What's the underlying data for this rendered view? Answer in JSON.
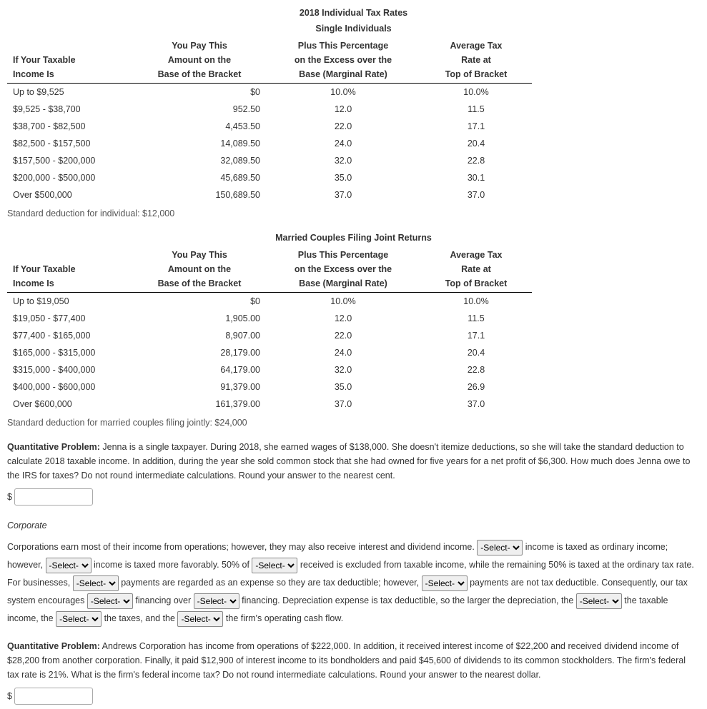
{
  "title_main": "2018 Individual Tax Rates",
  "subtitle_single": "Single Individuals",
  "headers": {
    "income": "If Your Taxable Income Is",
    "income1": "If Your Taxable",
    "income2": "Income Is",
    "base1": "You Pay This",
    "base2": "Amount on the",
    "base3": "Base of the Bracket",
    "rate1": "Plus This Percentage",
    "rate2": "on the Excess over the",
    "rate3": "Base (Marginal Rate)",
    "avg1": "Average Tax",
    "avg2": "Rate at",
    "avg3": "Top of Bracket"
  },
  "single_rows": [
    {
      "range": "Up to $9,525",
      "base": "$0",
      "rate": "10.0%",
      "avg": "10.0%"
    },
    {
      "range": "$9,525 - $38,700",
      "base": "952.50",
      "rate": "12.0",
      "avg": "11.5"
    },
    {
      "range": "$38,700 - $82,500",
      "base": "4,453.50",
      "rate": "22.0",
      "avg": "17.1"
    },
    {
      "range": "$82,500 - $157,500",
      "base": "14,089.50",
      "rate": "24.0",
      "avg": "20.4"
    },
    {
      "range": "$157,500 - $200,000",
      "base": "32,089.50",
      "rate": "32.0",
      "avg": "22.8"
    },
    {
      "range": "$200,000 - $500,000",
      "base": "45,689.50",
      "rate": "35.0",
      "avg": "30.1"
    },
    {
      "range": "Over $500,000",
      "base": "150,689.50",
      "rate": "37.0",
      "avg": "37.0"
    }
  ],
  "single_note": "Standard deduction for individual: $12,000",
  "subtitle_married": "Married Couples Filing Joint Returns",
  "married_rows": [
    {
      "range": "Up to $19,050",
      "base": "$0",
      "rate": "10.0%",
      "avg": "10.0%"
    },
    {
      "range": "$19,050 - $77,400",
      "base": "1,905.00",
      "rate": "12.0",
      "avg": "11.5"
    },
    {
      "range": "$77,400 - $165,000",
      "base": "8,907.00",
      "rate": "22.0",
      "avg": "17.1"
    },
    {
      "range": "$165,000 - $315,000",
      "base": "28,179.00",
      "rate": "24.0",
      "avg": "20.4"
    },
    {
      "range": "$315,000 - $400,000",
      "base": "64,179.00",
      "rate": "32.0",
      "avg": "22.8"
    },
    {
      "range": "$400,000 - $600,000",
      "base": "91,379.00",
      "rate": "35.0",
      "avg": "26.9"
    },
    {
      "range": "Over $600,000",
      "base": "161,379.00",
      "rate": "37.0",
      "avg": "37.0"
    }
  ],
  "married_note": "Standard deduction for married couples filing jointly: $24,000",
  "q1_label": "Quantitative Problem:",
  "q1_text": " Jenna is a single taxpayer. During 2018, she earned wages of $138,000. She doesn't itemize deductions, so she will take the standard deduction to calculate 2018 taxable income. In addition, during the year she sold common stock that she had owned for five years for a net profit of $6,300. How much does Jenna owe to the IRS for taxes? Do not round intermediate calculations. Round your answer to the nearest cent.",
  "dollar_sign": "$",
  "corporate_heading": "Corporate",
  "corp_t1": "Corporations earn most of their income from operations; however, they may also receive interest and dividend income. ",
  "corp_t2": " income is taxed as ordinary income; however, ",
  "corp_t3": " income is taxed more favorably. 50% of ",
  "corp_t4": " received is excluded from taxable income, while the remaining 50% is taxed at the ordinary tax rate. For businesses, ",
  "corp_t5": " payments are regarded as an expense so they are tax deductible; however, ",
  "corp_t6": " payments are not tax deductible. Consequently, our tax system encourages ",
  "corp_t7": " financing over ",
  "corp_t8": " financing. Depreciation expense is tax deductible, so the larger the depreciation, the ",
  "corp_t9": " the taxable income, the ",
  "corp_t10": " the taxes, and the ",
  "corp_t11": " the firm's operating cash flow.",
  "select_placeholder": "-Select-",
  "q2_label": "Quantitative Problem:",
  "q2_text": " Andrews Corporation has income from operations of $222,000. In addition, it received interest income of $22,200 and received dividend income of $28,200 from another corporation. Finally, it paid $12,900 of interest income to its bondholders and paid $45,600 of dividends to its common stockholders. The firm's federal tax rate is 21%. What is the firm's federal income tax? Do not round intermediate calculations. Round your answer to the nearest dollar."
}
